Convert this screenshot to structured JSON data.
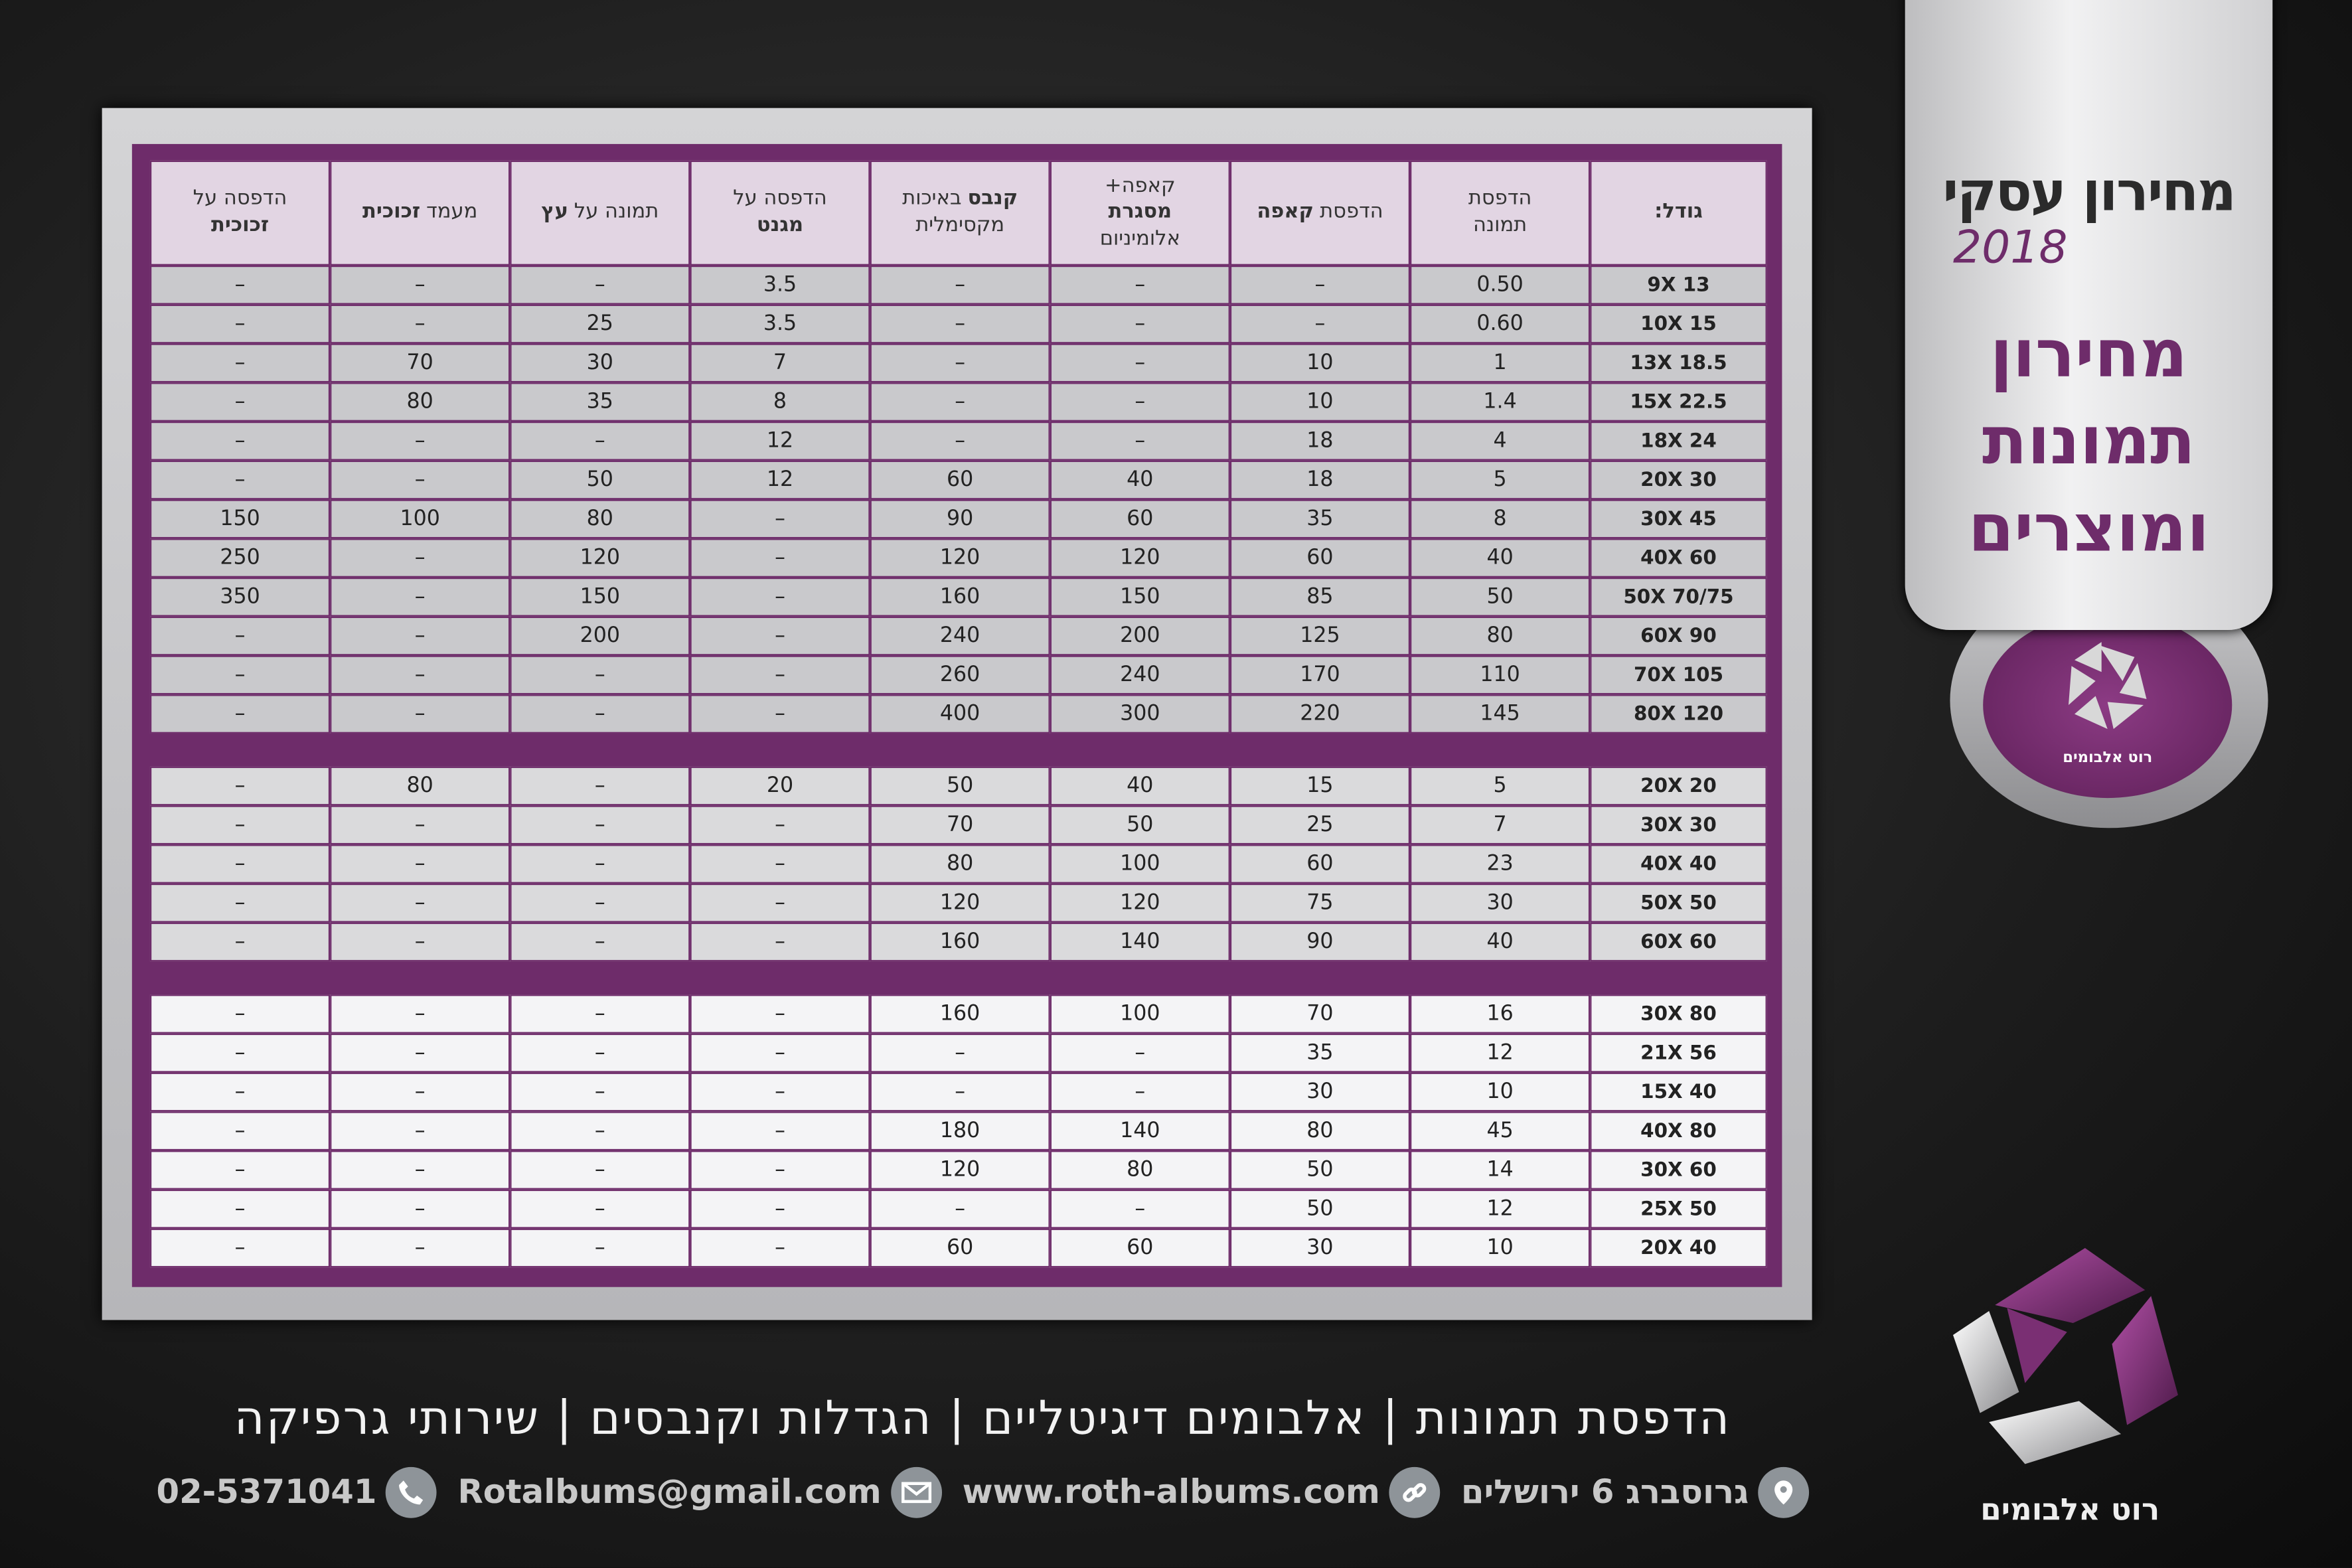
{
  "badge": {
    "title": "מחירון עסקי",
    "year": "2018",
    "heading": [
      "מחירון",
      "תמונות",
      "ומוצרים"
    ],
    "logo_text": "רוט אלבומים"
  },
  "table": {
    "headers": [
      [
        [
          {
            "text": "גודל:",
            "bold": true
          }
        ]
      ],
      [
        [
          {
            "text": "הדפסת"
          }
        ],
        [
          {
            "text": "תמונה"
          }
        ]
      ],
      [
        [
          {
            "text": "הדפסת"
          },
          {
            "text": "קאפה",
            "bold": true
          }
        ]
      ],
      [
        [
          {
            "text": "קאפה+"
          }
        ],
        [
          {
            "text": "מסגרת",
            "bold": true
          }
        ],
        [
          {
            "text": "אלומיניום"
          }
        ]
      ],
      [
        [
          {
            "text": "קנבס",
            "bold": true
          },
          {
            "text": "באיכות"
          }
        ],
        [
          {
            "text": "מקסימלית"
          }
        ]
      ],
      [
        [
          {
            "text": "הדפסה על"
          }
        ],
        [
          {
            "text": "מגנט",
            "bold": true
          }
        ]
      ],
      [
        [
          {
            "text": "תמונה על"
          },
          {
            "text": "עץ",
            "bold": true
          }
        ]
      ],
      [
        [
          {
            "text": "מעמד"
          },
          {
            "text": "זכוכית",
            "bold": true
          }
        ]
      ],
      [
        [
          {
            "text": "הדפסה על"
          }
        ],
        [
          {
            "text": "זכוכית",
            "bold": true
          }
        ]
      ]
    ],
    "groups": [
      {
        "color": "#c9c9cc",
        "rows": [
          [
            "9X 13",
            "0.50",
            "–",
            "–",
            "–",
            "3.5",
            "–",
            "–",
            "–"
          ],
          [
            "10X 15",
            "0.60",
            "–",
            "–",
            "–",
            "3.5",
            "25",
            "–",
            "–"
          ],
          [
            "13X 18.5",
            "1",
            "10",
            "–",
            "–",
            "7",
            "30",
            "70",
            "–"
          ],
          [
            "15X 22.5",
            "1.4",
            "10",
            "–",
            "–",
            "8",
            "35",
            "80",
            "–"
          ],
          [
            "18X 24",
            "4",
            "18",
            "–",
            "–",
            "12",
            "–",
            "–",
            "–"
          ],
          [
            "20X 30",
            "5",
            "18",
            "40",
            "60",
            "12",
            "50",
            "–",
            "–"
          ],
          [
            "30X 45",
            "8",
            "35",
            "60",
            "90",
            "–",
            "80",
            "100",
            "150"
          ],
          [
            "40X 60",
            "40",
            "60",
            "120",
            "120",
            "–",
            "120",
            "–",
            "250"
          ],
          [
            "50X 70/75",
            "50",
            "85",
            "150",
            "160",
            "–",
            "150",
            "–",
            "350"
          ],
          [
            "60X 90",
            "80",
            "125",
            "200",
            "240",
            "–",
            "200",
            "–",
            "–"
          ],
          [
            "70X 105",
            "110",
            "170",
            "240",
            "260",
            "–",
            "–",
            "–",
            "–"
          ],
          [
            "80X 120",
            "145",
            "220",
            "300",
            "400",
            "–",
            "–",
            "–",
            "–"
          ]
        ]
      },
      {
        "color": "#dadadc",
        "rows": [
          [
            "20X 20",
            "5",
            "15",
            "40",
            "50",
            "20",
            "–",
            "80",
            "–"
          ],
          [
            "30X 30",
            "7",
            "25",
            "50",
            "70",
            "–",
            "–",
            "–",
            "–"
          ],
          [
            "40X 40",
            "23",
            "60",
            "100",
            "80",
            "–",
            "–",
            "–",
            "–"
          ],
          [
            "50X 50",
            "30",
            "75",
            "120",
            "120",
            "–",
            "–",
            "–",
            "–"
          ],
          [
            "60X 60",
            "40",
            "90",
            "140",
            "160",
            "–",
            "–",
            "–",
            "–"
          ]
        ]
      },
      {
        "color": "#f4f4f6",
        "rows": [
          [
            "30X 80",
            "16",
            "70",
            "100",
            "160",
            "–",
            "–",
            "–",
            "–"
          ],
          [
            "21X 56",
            "12",
            "35",
            "–",
            "–",
            "–",
            "–",
            "–",
            "–"
          ],
          [
            "15X 40",
            "10",
            "30",
            "–",
            "–",
            "–",
            "–",
            "–",
            "–"
          ],
          [
            "40X 80",
            "45",
            "80",
            "140",
            "180",
            "–",
            "–",
            "–",
            "–"
          ],
          [
            "30X 60",
            "14",
            "50",
            "80",
            "120",
            "–",
            "–",
            "–",
            "–"
          ],
          [
            "25X 50",
            "12",
            "50",
            "–",
            "–",
            "–",
            "–",
            "–",
            "–"
          ],
          [
            "20X 40",
            "10",
            "30",
            "60",
            "60",
            "–",
            "–",
            "–",
            "–"
          ]
        ]
      }
    ]
  },
  "footer": {
    "services": "הדפסת תמונות | אלבומים דיגיטליים | הגדלות וקנבסים | שירותי גרפיקה",
    "contacts": [
      "גרוסברג 6 ירושלים",
      "www.roth-albums.com",
      "Rotalbums@gmail.com",
      "02-5371041"
    ],
    "logo_text": "רוט אלבומים"
  }
}
